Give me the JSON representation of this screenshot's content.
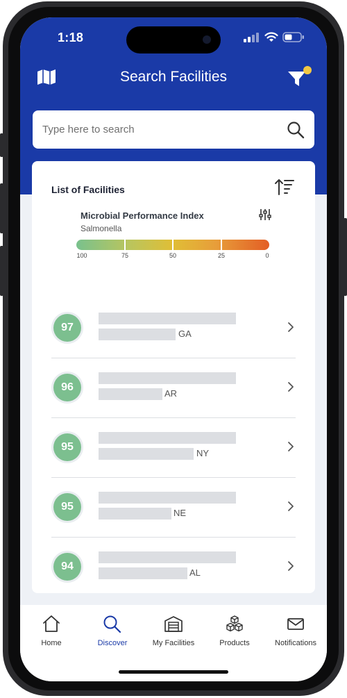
{
  "status_bar": {
    "time": "1:18"
  },
  "header": {
    "title": "Search Facilities"
  },
  "search": {
    "placeholder": "Type here to search"
  },
  "list": {
    "title": "List of Facilities",
    "index_title": "Microbial Performance Index",
    "index_subtitle": "Salmonella",
    "scale_labels": [
      "100",
      "75",
      "50",
      "25",
      "0"
    ],
    "facilities": [
      {
        "score": "97",
        "state": "GA"
      },
      {
        "score": "96",
        "state": "AR"
      },
      {
        "score": "95",
        "state": "NY"
      },
      {
        "score": "95",
        "state": "NE"
      },
      {
        "score": "94",
        "state": "AL"
      }
    ]
  },
  "tabs": [
    {
      "label": "Home",
      "icon": "home-icon"
    },
    {
      "label": "Discover",
      "icon": "search-icon"
    },
    {
      "label": "My Facilities",
      "icon": "facility-icon"
    },
    {
      "label": "Products",
      "icon": "cubes-icon"
    },
    {
      "label": "Notifications",
      "icon": "envelope-icon"
    }
  ],
  "colors": {
    "brand": "#1a3aa7",
    "score_green": "#7cbf8f",
    "notification_dot": "#f2c744",
    "active_tab": "#1a3aa7"
  }
}
